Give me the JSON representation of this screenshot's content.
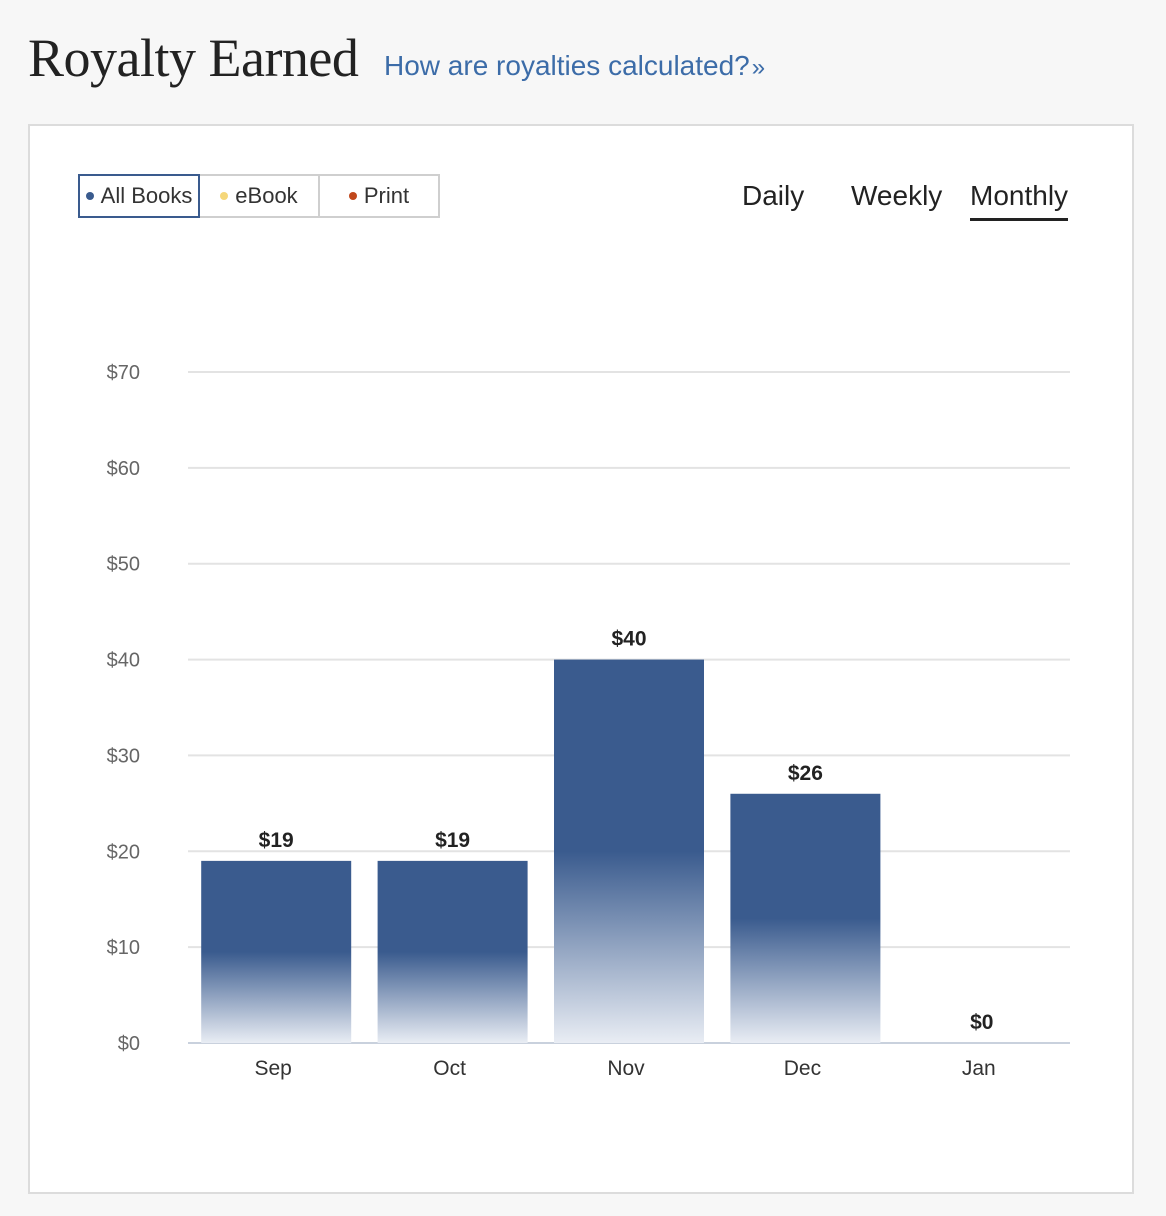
{
  "header": {
    "title": "Royalty Earned",
    "help_link": "How are royalties calculated?",
    "help_link_chevron": "»"
  },
  "filters": [
    {
      "label": "All Books",
      "color": "#3a5b8e",
      "active": true
    },
    {
      "label": "eBook",
      "color": "#f5d77a",
      "active": false
    },
    {
      "label": "Print",
      "color": "#c0471b",
      "active": false
    }
  ],
  "periods": [
    {
      "label": "Daily",
      "active": false
    },
    {
      "label": "Weekly",
      "active": false
    },
    {
      "label": "Monthly",
      "active": true
    }
  ],
  "colors": {
    "bar": "#3a5b8e",
    "bar_fade": "#e9edf4",
    "grid": "#e3e3e3",
    "baseline": "#c9d1dd"
  },
  "chart_data": {
    "type": "bar",
    "categories": [
      "Sep",
      "Oct",
      "Nov",
      "Dec",
      "Jan"
    ],
    "values": [
      19,
      19,
      40,
      26,
      0
    ],
    "value_labels": [
      "$19",
      "$19",
      "$40",
      "$26",
      "$0"
    ],
    "ylim": [
      0,
      70
    ],
    "yticks": [
      0,
      10,
      20,
      30,
      40,
      50,
      60,
      70
    ],
    "ytick_labels": [
      "$0",
      "$10",
      "$20",
      "$30",
      "$40",
      "$50",
      "$60",
      "$70"
    ],
    "grid": true,
    "title": "",
    "xlabel": "",
    "ylabel": ""
  }
}
